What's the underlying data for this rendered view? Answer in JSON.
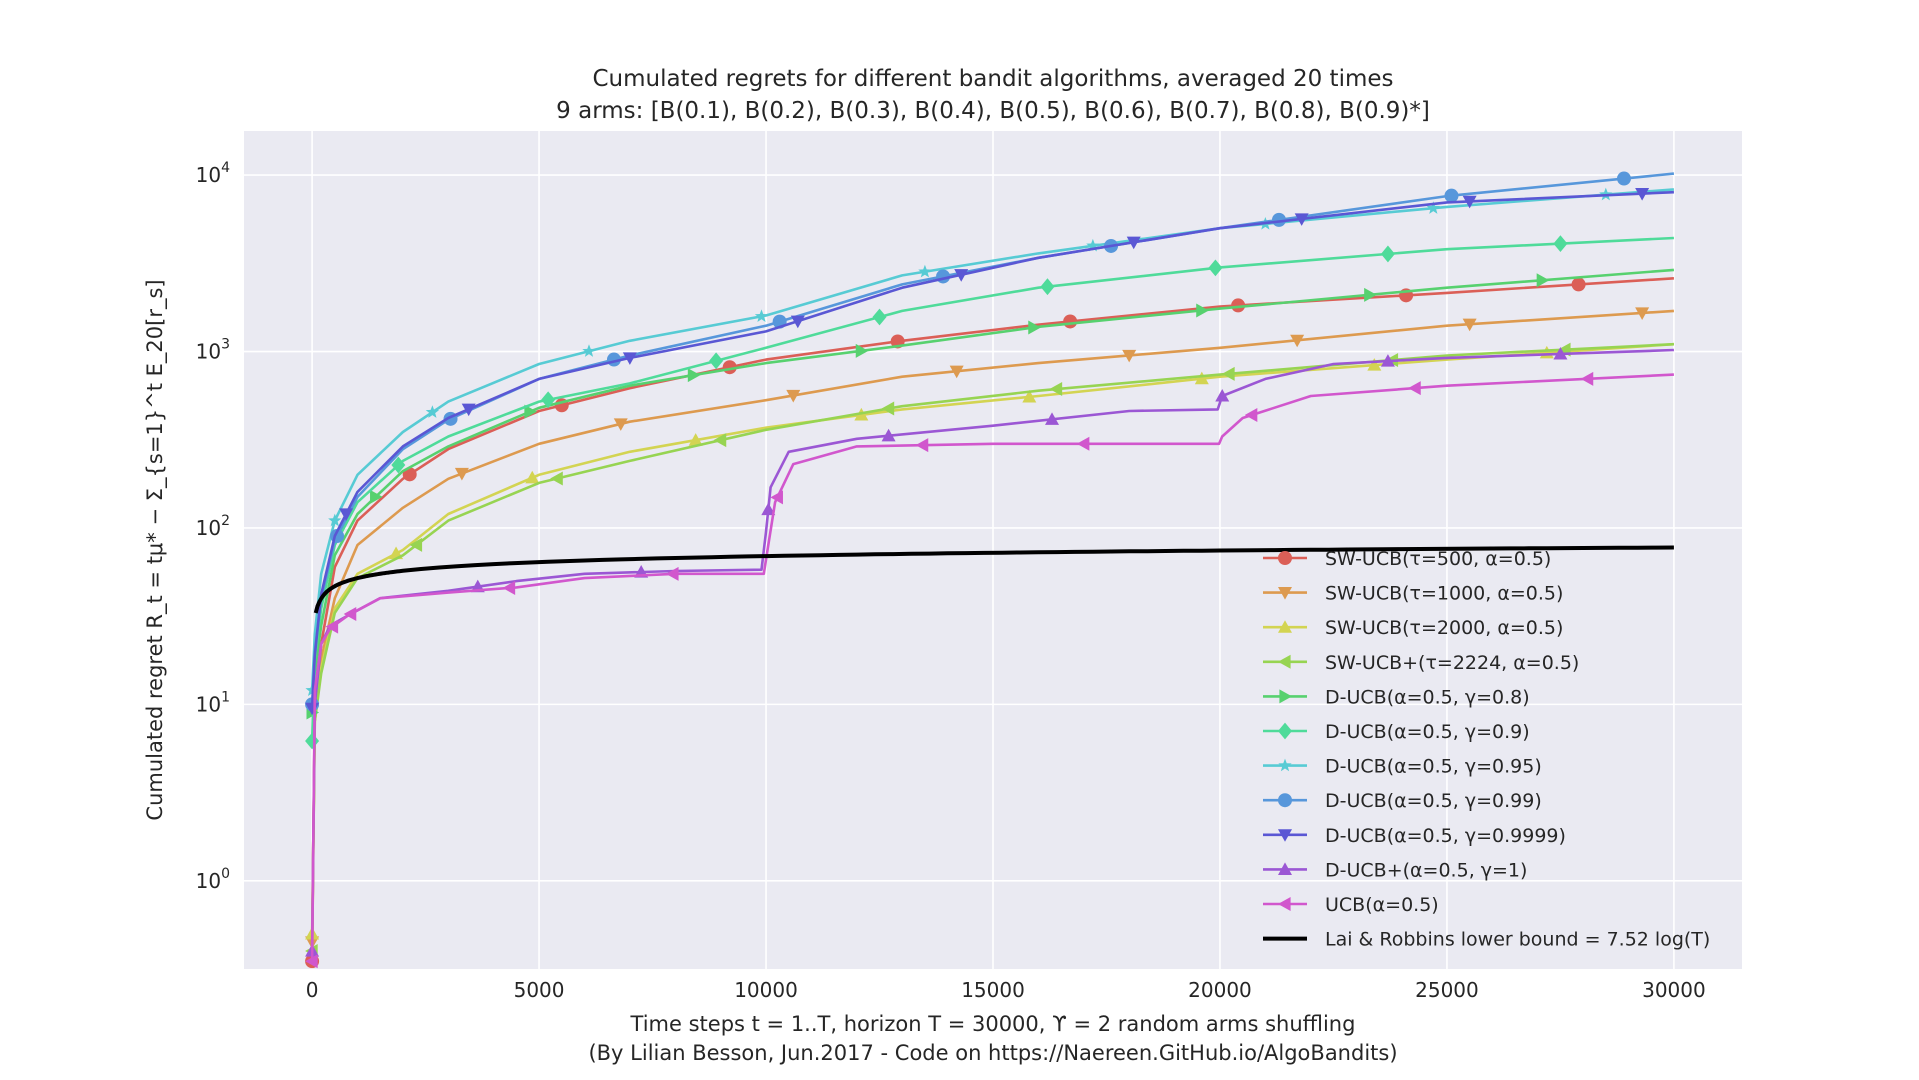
{
  "chart_data": {
    "type": "line",
    "title": "Cumulated regrets for different bandit algorithms, averaged 20 times",
    "subtitle": "9 arms: [B(0.1), B(0.2), B(0.3), B(0.4), B(0.5), B(0.6), B(0.7), B(0.8), B(0.9)*]",
    "xlabel": "Time steps t = 1..T, horizon T = 30000, ϒ = 2 random arms shuffling",
    "xlabel2": "(By Lilian Besson, Jun.2017 - Code on https://Naereen.GitHub.io/AlgoBandits)",
    "ylabel": "Cumulated regret R_t = tμ* − Σ_{s=1}^t E_20[r_s]",
    "xlim": [
      -1500,
      31500
    ],
    "ylim_log10": [
      -0.5,
      4.25
    ],
    "yscale": "log",
    "grid": true,
    "legend_position": "lower-right",
    "xticks": [
      0,
      5000,
      10000,
      15000,
      20000,
      25000,
      30000
    ],
    "xtick_labels": [
      "0",
      "5000",
      "10000",
      "15000",
      "20000",
      "25000",
      "30000"
    ],
    "yticks_log10": [
      0,
      1,
      2,
      3,
      4
    ],
    "series": [
      {
        "name": "SW-UCB(τ=500, α=0.5)",
        "color": "#db5f57",
        "marker": "circle",
        "x": [
          0,
          60,
          200,
          500,
          1000,
          2000,
          3000,
          5000,
          7000,
          10000,
          13000,
          16000,
          20000,
          25000,
          30000
        ],
        "y": [
          0.35,
          9,
          22,
          60,
          110,
          190,
          280,
          460,
          620,
          900,
          1150,
          1420,
          1800,
          2150,
          2600
        ],
        "marker_x": [
          0,
          2150,
          5500,
          9200,
          12900,
          16700,
          20400,
          24100,
          27900
        ]
      },
      {
        "name": "SW-UCB(τ=1000, α=0.5)",
        "color": "#dd9a4f",
        "marker": "triangle-down",
        "x": [
          0,
          60,
          200,
          500,
          1000,
          2000,
          3000,
          5000,
          7000,
          10000,
          13000,
          16000,
          20000,
          25000,
          30000
        ],
        "y": [
          0.45,
          9,
          18,
          40,
          80,
          130,
          190,
          300,
          400,
          530,
          720,
          860,
          1050,
          1400,
          1700
        ],
        "marker_x": [
          0,
          3300,
          6800,
          10600,
          14200,
          18000,
          21700,
          25500,
          29300
        ]
      },
      {
        "name": "SW-UCB(τ=2000, α=0.5)",
        "color": "#d3d452",
        "marker": "triangle-up",
        "x": [
          0,
          60,
          200,
          500,
          1000,
          2000,
          3000,
          5000,
          7000,
          10000,
          13000,
          16000,
          20000,
          25000,
          30000
        ],
        "y": [
          0.5,
          8,
          16,
          35,
          55,
          75,
          120,
          200,
          270,
          370,
          470,
          560,
          720,
          900,
          1100
        ],
        "marker_x": [
          0,
          1850,
          4850,
          8450,
          12100,
          15800,
          19600,
          23400,
          27200
        ]
      },
      {
        "name": "SW-UCB+(τ=2224, α=0.5)",
        "color": "#97d452",
        "marker": "triangle-left",
        "x": [
          0,
          60,
          200,
          500,
          1000,
          2000,
          3000,
          5000,
          7000,
          10000,
          13000,
          16000,
          20000,
          25000,
          30000
        ],
        "y": [
          0.4,
          8,
          15,
          33,
          52,
          70,
          110,
          180,
          240,
          360,
          490,
          600,
          740,
          950,
          1100
        ],
        "marker_x": [
          0,
          2300,
          5400,
          9000,
          12700,
          16400,
          20200,
          23800,
          27600
        ]
      },
      {
        "name": "D-UCB(α=0.5, γ=0.8)",
        "color": "#57d16f",
        "marker": "triangle-right",
        "x": [
          0,
          60,
          200,
          500,
          1000,
          2000,
          3000,
          5000,
          7000,
          10000,
          13000,
          16000,
          20000,
          25000,
          30000
        ],
        "y": [
          9,
          15,
          28,
          70,
          120,
          210,
          290,
          480,
          640,
          860,
          1080,
          1380,
          1750,
          2300,
          2900
        ],
        "marker_x": [
          0,
          1400,
          4800,
          8400,
          12100,
          15900,
          19600,
          23300,
          27100
        ]
      },
      {
        "name": "D-UCB(α=0.5, γ=0.9)",
        "color": "#4fdb9a",
        "marker": "diamond",
        "x": [
          0,
          60,
          200,
          500,
          1000,
          2000,
          3000,
          5000,
          7000,
          10000,
          13000,
          16000,
          20000,
          25000,
          30000
        ],
        "y": [
          6.2,
          18,
          35,
          80,
          140,
          240,
          330,
          520,
          660,
          1050,
          1700,
          2300,
          3000,
          3800,
          4400
        ],
        "marker_x": [
          0,
          1900,
          5200,
          8900,
          12500,
          16200,
          19900,
          23700,
          27500
        ]
      },
      {
        "name": "D-UCB(α=0.5, γ=0.95)",
        "color": "#57cbd4",
        "marker": "star",
        "x": [
          0,
          60,
          200,
          500,
          1000,
          2000,
          3000,
          5000,
          7000,
          10000,
          13000,
          16000,
          20000,
          25000,
          30000
        ],
        "y": [
          12,
          25,
          55,
          110,
          200,
          350,
          520,
          850,
          1150,
          1600,
          2700,
          3600,
          5000,
          6600,
          8300
        ],
        "marker_x": [
          0,
          500,
          2650,
          6100,
          9900,
          13500,
          17200,
          21000,
          24700,
          28500
        ]
      },
      {
        "name": "D-UCB(α=0.5, γ=0.99)",
        "color": "#5797db",
        "marker": "circle",
        "x": [
          0,
          60,
          200,
          500,
          1000,
          2000,
          3000,
          5000,
          7000,
          10000,
          13000,
          16000,
          20000,
          25000,
          30000
        ],
        "y": [
          10,
          20,
          40,
          85,
          150,
          280,
          410,
          700,
          950,
          1400,
          2400,
          3400,
          5000,
          7600,
          10200
        ],
        "marker_x": [
          0,
          550,
          3050,
          6650,
          10300,
          13900,
          17600,
          21300,
          25100,
          28900
        ]
      },
      {
        "name": "D-UCB(α=0.5, γ=0.9999)",
        "color": "#5a57d4",
        "marker": "triangle-down",
        "x": [
          0,
          60,
          200,
          500,
          1000,
          2000,
          3000,
          5000,
          7000,
          10000,
          13000,
          16000,
          20000,
          25000,
          30000
        ],
        "y": [
          9.5,
          19,
          42,
          90,
          160,
          290,
          420,
          700,
          920,
          1300,
          2300,
          3400,
          5000,
          7000,
          8000
        ],
        "marker_x": [
          0,
          750,
          3450,
          7000,
          10700,
          14300,
          18100,
          21800,
          25500,
          29300
        ]
      },
      {
        "name": "D-UCB+(α=0.5, γ=1)",
        "color": "#9b57d4",
        "marker": "triangle-up",
        "x": [
          0,
          60,
          200,
          400,
          800,
          1500,
          3000,
          4500,
          6000,
          8000,
          9900,
          10000,
          10100,
          10500,
          12000,
          15000,
          18000,
          19950,
          20050,
          21000,
          22500,
          25000,
          30000
        ],
        "y": [
          0.4,
          10,
          22,
          28,
          32,
          40,
          44,
          50,
          55,
          57,
          58,
          95,
          170,
          270,
          320,
          380,
          460,
          470,
          560,
          700,
          850,
          920,
          1020
        ],
        "marker_x": [
          0,
          3650,
          7250,
          10050,
          12700,
          16300,
          20050,
          23700,
          27500
        ]
      },
      {
        "name": "UCB(α=0.5)",
        "color": "#d157cd",
        "marker": "triangle-left",
        "x": [
          0,
          60,
          200,
          400,
          800,
          1500,
          3000,
          4500,
          6000,
          8000,
          9950,
          10050,
          10200,
          10600,
          12000,
          15000,
          18000,
          19980,
          20050,
          20500,
          22000,
          25000,
          30000
        ],
        "y": [
          0.35,
          12,
          22,
          27,
          32,
          40,
          43,
          46,
          52,
          55,
          55,
          80,
          140,
          230,
          290,
          300,
          300,
          300,
          330,
          420,
          560,
          640,
          740
        ],
        "marker_x": [
          0,
          450,
          850,
          4350,
          7950,
          10250,
          13450,
          17000,
          20700,
          24300,
          28100
        ]
      }
    ],
    "reference_line": {
      "name": "Lai & Robbins lower bound = 7.52 log(T)",
      "color": "#000000",
      "coefficient": 7.52
    }
  }
}
